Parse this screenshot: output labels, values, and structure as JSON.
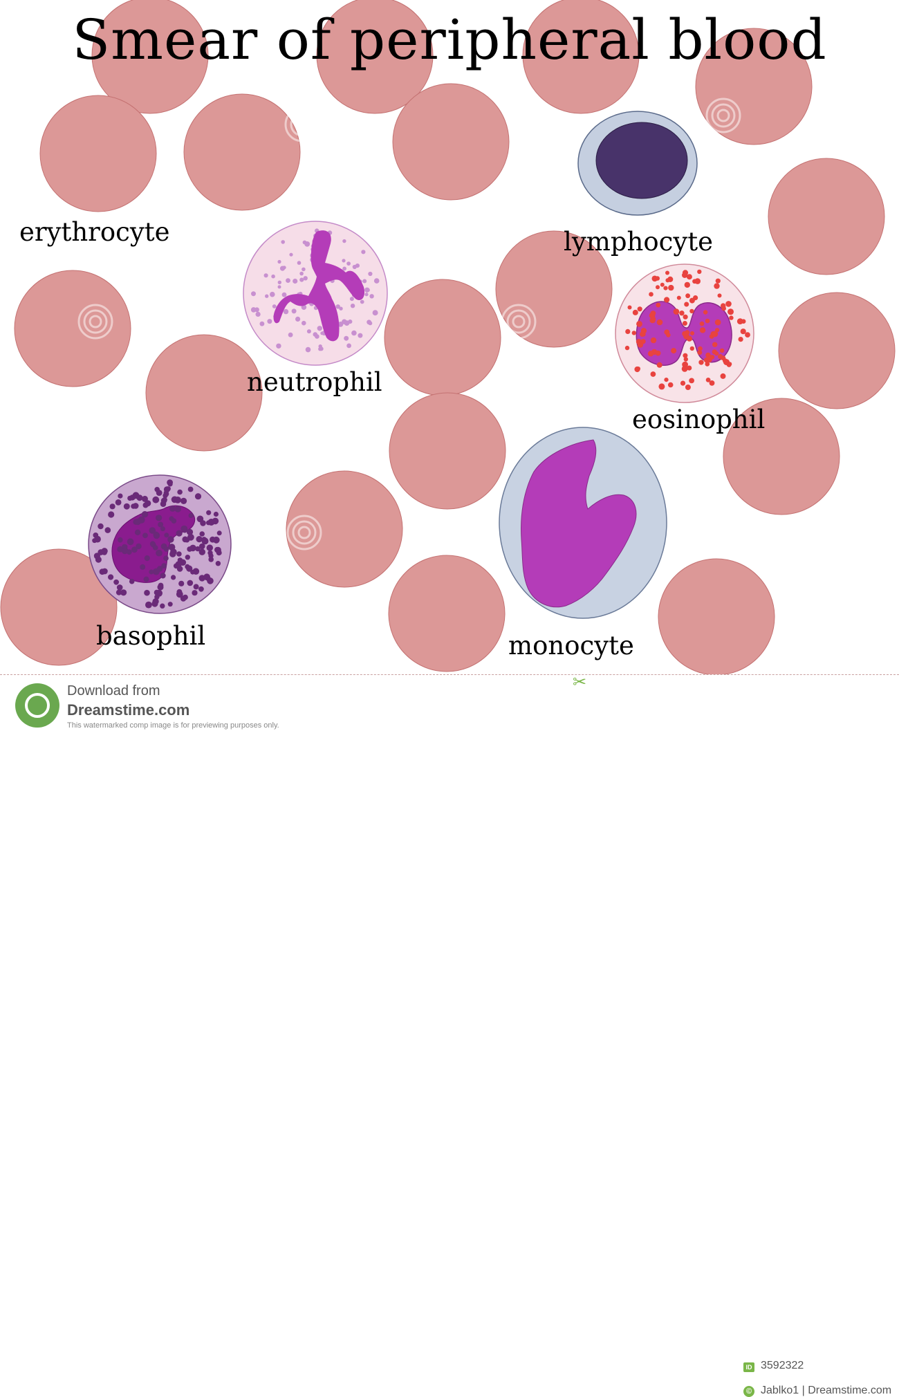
{
  "title": "Smear of peripheral blood",
  "labels": {
    "erythrocyte": "erythrocyte",
    "neutrophil": "neutrophil",
    "lymphocyte": "lymphocyte",
    "eosinophil": "eosinophil",
    "basophil": "basophil",
    "monocyte": "monocyte"
  },
  "colors": {
    "erythrocyte_fill": "#dc9897",
    "erythrocyte_stroke": "#c47272",
    "nucleus_magenta": "#b43cb8",
    "lymph_nucleus": "#48336a",
    "lymph_cytoplasm": "#c5cfe0",
    "neutro_cytoplasm": "#f6dde8",
    "eosino_granule": "#e8433f",
    "baso_cytoplasm": "#c9a8cf",
    "baso_granule": "#6a2a78",
    "mono_cytoplasm": "#c8d2e2"
  },
  "footer": {
    "download": "Download from",
    "site": "Dreamstime.com",
    "note": "This watermarked comp image is for previewing purposes only.",
    "id_label": "ID",
    "id": "3592322",
    "copyright_symbol": "©",
    "credit": "Jablko1 | Dreamstime.com",
    "logo_icon": "dreamstime-logo-icon",
    "scissors_icon": "scissors-icon"
  }
}
